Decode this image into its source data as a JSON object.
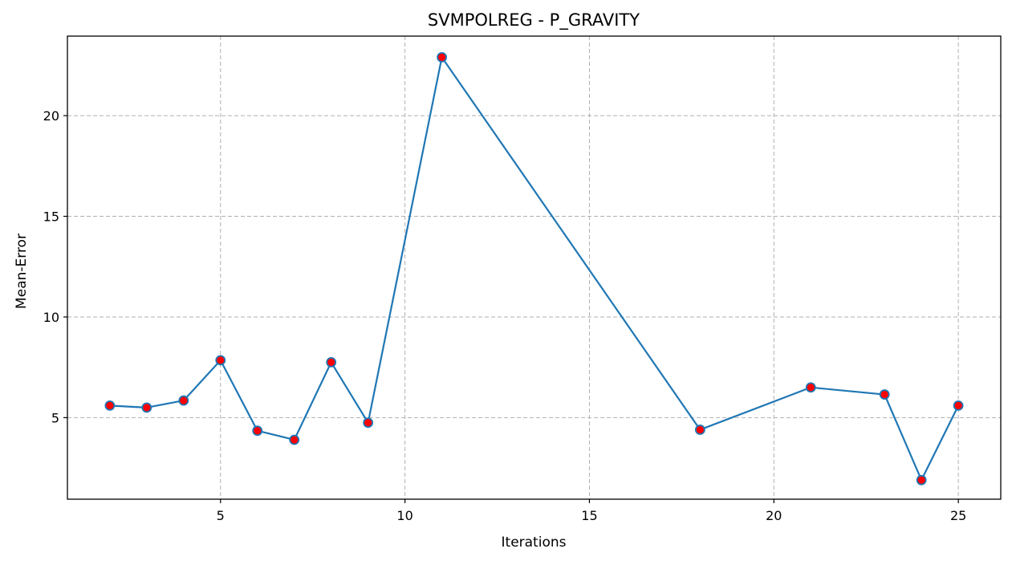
{
  "chart_data": {
    "type": "line",
    "title": "SVMPOLREG - P_GRAVITY",
    "xlabel": "Iterations",
    "ylabel": "Mean-Error",
    "xlim": [
      0.85,
      26.15
    ],
    "ylim": [
      0.95,
      23.95
    ],
    "xticks": [
      5,
      10,
      15,
      20,
      25
    ],
    "yticks": [
      5,
      10,
      15,
      20
    ],
    "grid": true,
    "grid_style": "dashed",
    "colors": {
      "line": "#1f77b4",
      "marker_fill": "#ff0000",
      "marker_edge": "#1f77b4",
      "grid": "#b0b0b0"
    },
    "series": [
      {
        "x": [
          2,
          3,
          4,
          5,
          6,
          7,
          8,
          9,
          11,
          18,
          21,
          23,
          24,
          25
        ],
        "y": [
          5.6,
          5.5,
          5.85,
          7.85,
          4.35,
          3.9,
          7.75,
          4.75,
          22.9,
          4.4,
          6.5,
          6.15,
          1.9,
          5.6
        ]
      }
    ]
  }
}
